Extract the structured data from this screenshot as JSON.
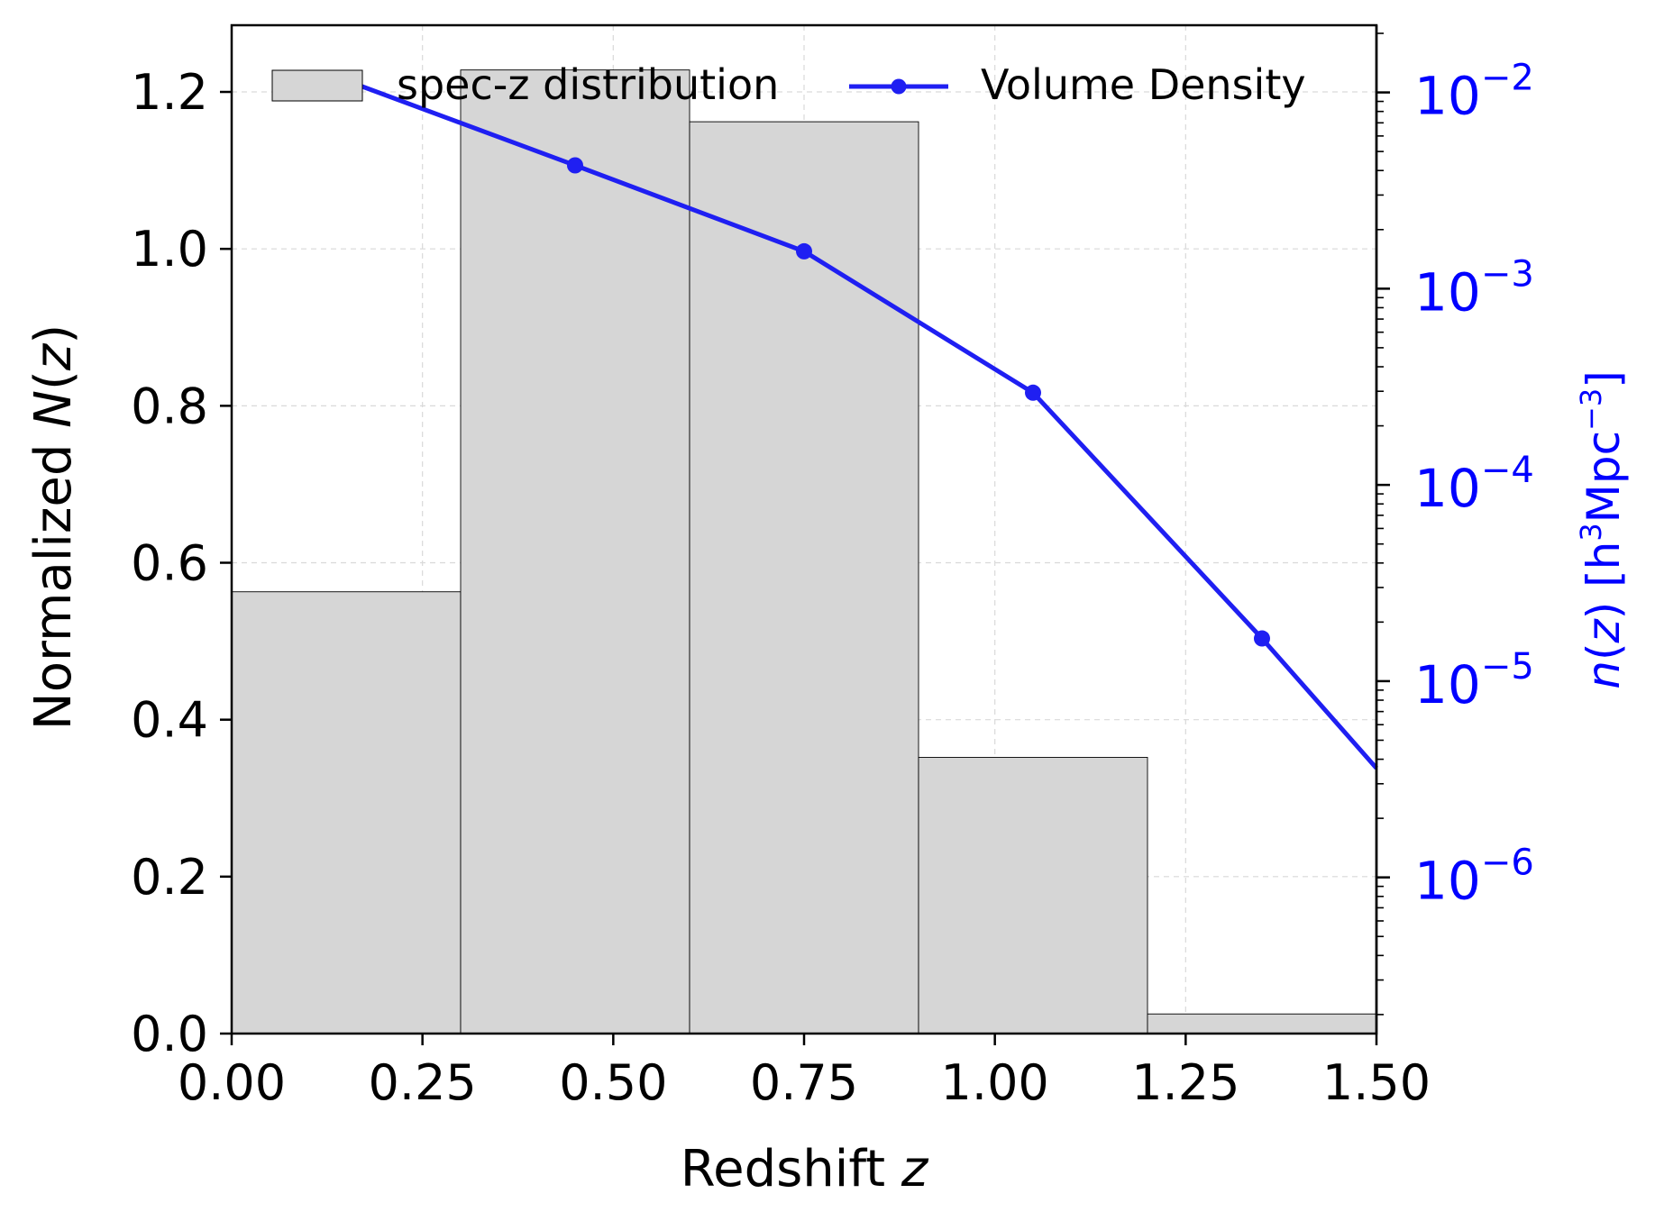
{
  "chart_data": {
    "type": "bar",
    "bars": {
      "legend_label": "spec-z distribution",
      "bin_edges": [
        0.0,
        0.3,
        0.6,
        0.9,
        1.2,
        1.5
      ],
      "values": [
        0.563,
        1.228,
        1.162,
        0.352,
        0.025
      ],
      "color": "#d6d6d6",
      "edge_color": "#000000"
    },
    "line": {
      "legend_label": "Volume Density",
      "x": [
        0.15,
        0.45,
        0.75,
        1.05,
        1.35,
        1.5
      ],
      "y": [
        0.0115,
        0.00425,
        0.00155,
        0.000295,
        1.65e-05,
        3.6e-06
      ],
      "color": "#1f1ff2"
    },
    "x_axis": {
      "label_main": "Redshift ",
      "label_var": "z",
      "ticks": [
        0.0,
        0.25,
        0.5,
        0.75,
        1.0,
        1.25,
        1.5
      ],
      "tick_labels": [
        "0.00",
        "0.25",
        "0.50",
        "0.75",
        "1.00",
        "1.25",
        "1.50"
      ],
      "range": [
        0.0,
        1.5
      ]
    },
    "y_left": {
      "label_main": "Normalized ",
      "label_var": "N",
      "label_tail": "(",
      "label_var2": "z",
      "label_end": ")",
      "ticks": [
        0.0,
        0.2,
        0.4,
        0.6,
        0.8,
        1.0,
        1.2
      ],
      "tick_labels": [
        "0.0",
        "0.2",
        "0.4",
        "0.6",
        "0.8",
        "1.0",
        "1.2"
      ],
      "range": [
        0.0,
        1.285
      ]
    },
    "y_right": {
      "scale": "log",
      "label_var": "n",
      "label_open": "(",
      "label_var2": "z",
      "label_close": ") [h",
      "label_sup1": "3",
      "label_mid": "Mpc",
      "label_sup2": "−3",
      "label_end": "]",
      "tick_values": [
        0.01,
        0.001,
        0.0001,
        1e-05,
        1e-06
      ],
      "tick_bases": [
        "10",
        "10",
        "10",
        "10",
        "10"
      ],
      "tick_exponents": [
        "−2",
        "−3",
        "−4",
        "−5",
        "−6"
      ],
      "range": [
        1.6e-07,
        0.022
      ],
      "color": "#0000ff"
    },
    "grid": true,
    "legend_position": "top"
  }
}
